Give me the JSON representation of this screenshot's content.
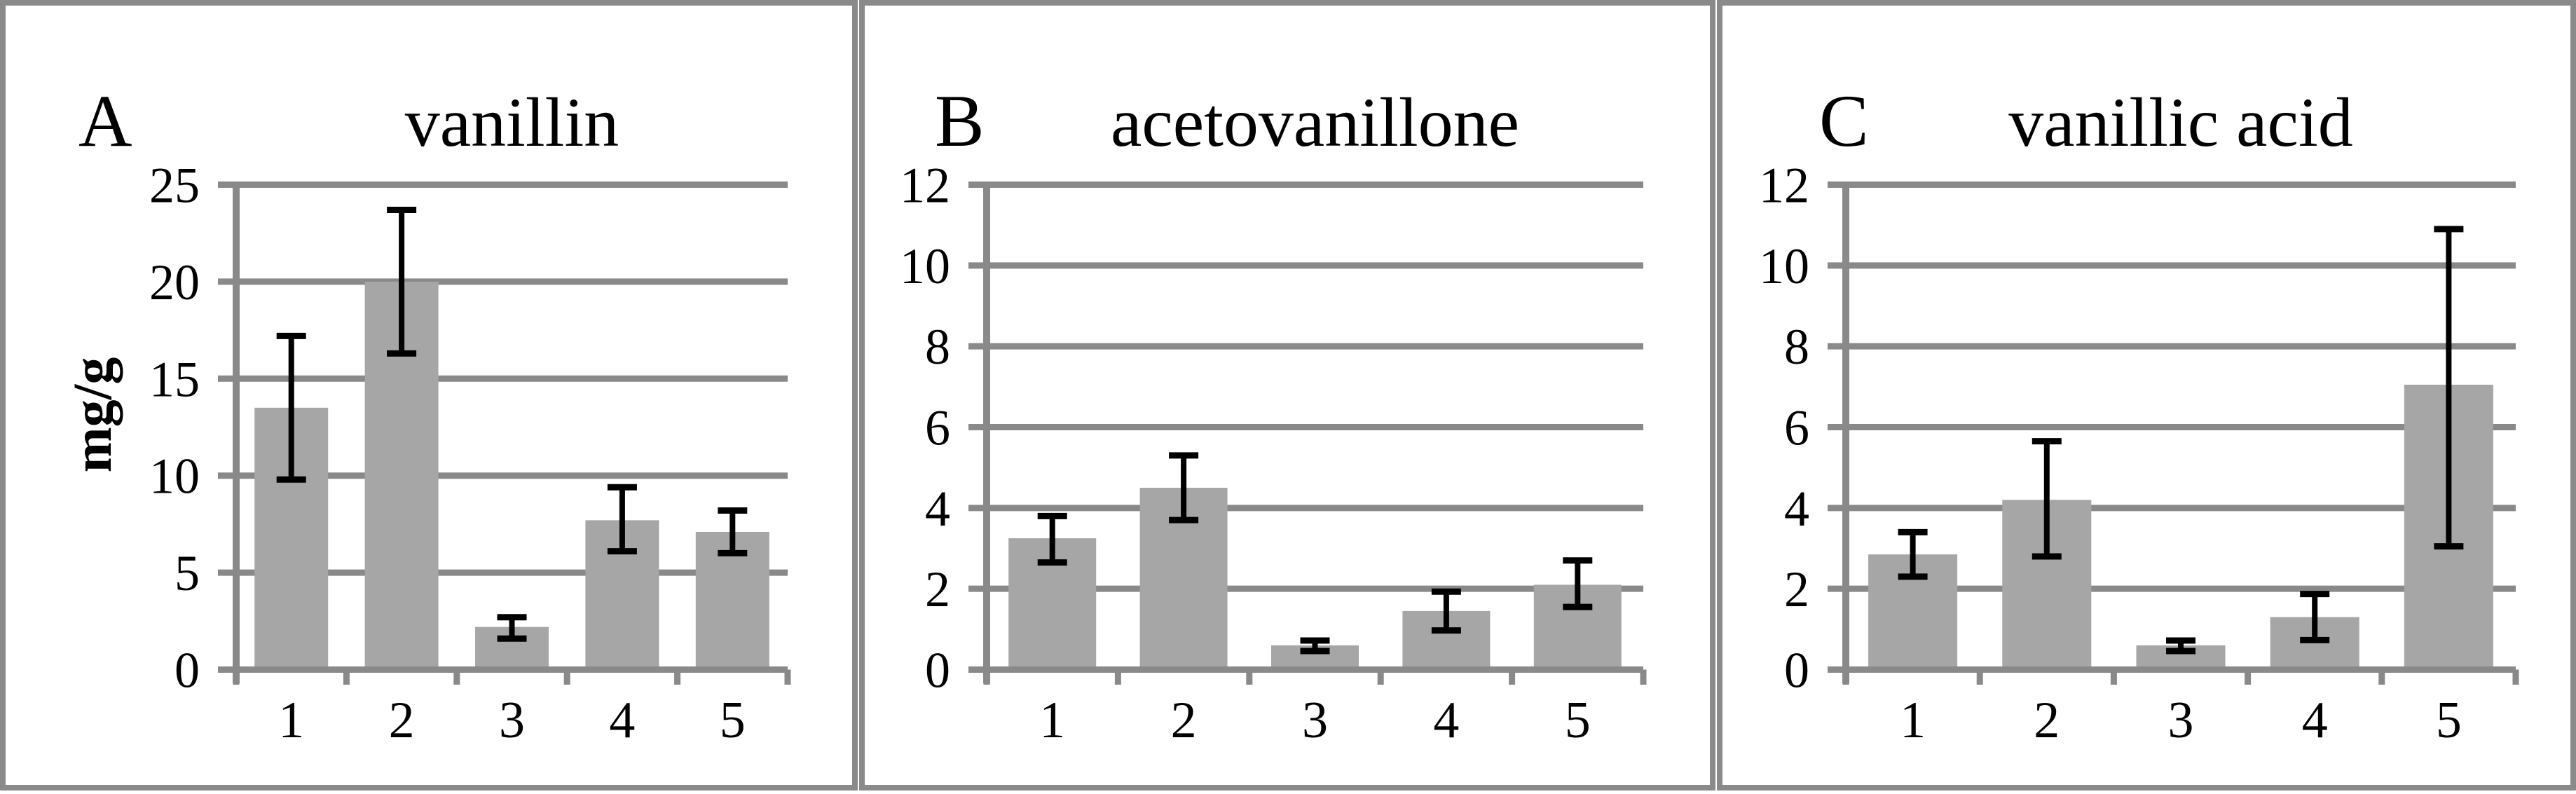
{
  "figure": {
    "colors": {
      "background": "#ffffff",
      "panel_border": "#8a8a8a",
      "grid": "#898989",
      "axis": "#898989",
      "bar_fill": "#a6a6a6",
      "error_bar": "#000000",
      "text": "#000000"
    }
  },
  "chart_data": [
    {
      "type": "bar",
      "panel_label": "A",
      "title": "vanillin",
      "ylabel": "mg/g",
      "categories": [
        "1",
        "2",
        "3",
        "4",
        "5"
      ],
      "values": [
        13.5,
        20.0,
        2.2,
        7.7,
        7.1
      ],
      "error_high": [
        17.2,
        23.7,
        2.7,
        9.4,
        8.2
      ],
      "error_low": [
        9.8,
        16.3,
        1.6,
        6.1,
        6.0
      ],
      "ylim": [
        0,
        25
      ],
      "yticks": [
        0,
        5,
        10,
        15,
        20,
        25
      ],
      "grid": true,
      "legend": null
    },
    {
      "type": "bar",
      "panel_label": "B",
      "title": "acetovanillone",
      "ylabel": "",
      "categories": [
        "1",
        "2",
        "3",
        "4",
        "5"
      ],
      "values": [
        3.25,
        4.5,
        0.6,
        1.45,
        2.1
      ],
      "error_high": [
        3.8,
        5.3,
        0.72,
        1.93,
        2.7
      ],
      "error_low": [
        2.65,
        3.7,
        0.46,
        0.97,
        1.55
      ],
      "ylim": [
        0,
        12
      ],
      "yticks": [
        0,
        2,
        4,
        6,
        8,
        10,
        12
      ],
      "grid": true,
      "legend": null
    },
    {
      "type": "bar",
      "panel_label": "C",
      "title": "vanillic acid",
      "ylabel": "",
      "categories": [
        "1",
        "2",
        "3",
        "4",
        "5"
      ],
      "values": [
        2.85,
        4.2,
        0.6,
        1.3,
        7.05
      ],
      "error_high": [
        3.4,
        5.65,
        0.72,
        1.87,
        10.9
      ],
      "error_low": [
        2.3,
        2.8,
        0.46,
        0.73,
        3.05
      ],
      "ylim": [
        0,
        12
      ],
      "yticks": [
        0,
        2,
        4,
        6,
        8,
        10,
        12
      ],
      "grid": true,
      "legend": null
    }
  ]
}
